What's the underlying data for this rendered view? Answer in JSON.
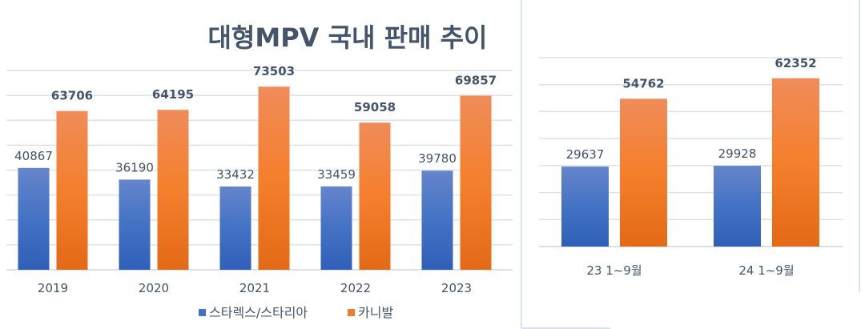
{
  "colors": {
    "series1": "#4472C4",
    "series2": "#ED7D31",
    "grid": "#DDE1E6",
    "text": "#44546A"
  },
  "chart_data": [
    {
      "type": "bar",
      "title": "대형MPV 국내 판매 추이",
      "categories": [
        "2019",
        "2020",
        "2021",
        "2022",
        "2023"
      ],
      "series": [
        {
          "name": "스타렉스/스타리아",
          "values": [
            40867,
            36190,
            33432,
            33459,
            39780
          ]
        },
        {
          "name": "카니발",
          "values": [
            63706,
            64195,
            73503,
            59058,
            69857
          ]
        }
      ],
      "ylim": [
        0,
        80000
      ],
      "grid": true,
      "legend": "bottom"
    },
    {
      "type": "bar",
      "categories": [
        "23 1~9월",
        "24 1~9월"
      ],
      "series": [
        {
          "values": [
            29637,
            29928
          ]
        },
        {
          "values": [
            54762,
            62352
          ]
        }
      ],
      "ylim": [
        0,
        70000
      ],
      "grid": true
    }
  ]
}
